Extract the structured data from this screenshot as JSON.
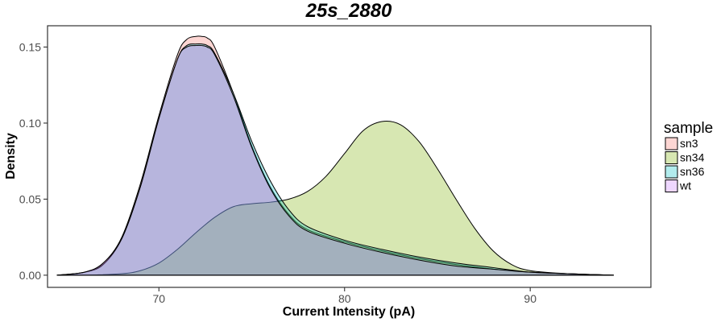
{
  "chart_data": {
    "type": "area",
    "title": "25s_2880",
    "xlabel": "Current Intensity (pA)",
    "ylabel": "Density",
    "xlim": [
      64,
      96.5
    ],
    "ylim": [
      -0.008,
      0.164
    ],
    "x_ticks": [
      {
        "value": 70,
        "label": "70"
      },
      {
        "value": 80,
        "label": "80"
      },
      {
        "value": 90,
        "label": "90"
      }
    ],
    "y_ticks": [
      {
        "value": 0.0,
        "label": "0.00"
      },
      {
        "value": 0.05,
        "label": "0.05"
      },
      {
        "value": 0.1,
        "label": "0.10"
      },
      {
        "value": 0.15,
        "label": "0.15"
      }
    ],
    "grid": false,
    "legend": {
      "title": "sample",
      "position": "right"
    },
    "series": [
      {
        "name": "sn3",
        "color": "#F8766D",
        "x": [
          64.5,
          66,
          67,
          68,
          69,
          70,
          71,
          71.5,
          72,
          72.3,
          72.6,
          73,
          74,
          75,
          76,
          77,
          78,
          80,
          82,
          84,
          86,
          88,
          90,
          92,
          94.5
        ],
        "y": [
          0.0,
          0.002,
          0.008,
          0.025,
          0.06,
          0.105,
          0.145,
          0.155,
          0.157,
          0.157,
          0.156,
          0.15,
          0.12,
          0.085,
          0.058,
          0.04,
          0.03,
          0.022,
          0.016,
          0.011,
          0.007,
          0.004,
          0.002,
          0.001,
          0.0
        ]
      },
      {
        "name": "sn34",
        "color": "#7CAE00",
        "x": [
          64.5,
          66,
          68,
          69,
          70,
          71,
          72,
          73,
          74,
          75,
          76,
          77,
          78,
          79,
          80,
          81,
          82,
          83,
          84,
          85,
          86,
          87,
          88,
          89,
          90,
          92,
          94.5
        ],
        "y": [
          0.0,
          0.0,
          0.001,
          0.003,
          0.008,
          0.017,
          0.028,
          0.038,
          0.045,
          0.047,
          0.048,
          0.05,
          0.055,
          0.065,
          0.08,
          0.095,
          0.101,
          0.099,
          0.088,
          0.07,
          0.05,
          0.031,
          0.016,
          0.007,
          0.003,
          0.001,
          0.0
        ]
      },
      {
        "name": "sn36",
        "color": "#00BFC4",
        "x": [
          64.5,
          66,
          67,
          68,
          69,
          70,
          71,
          71.5,
          72,
          72.3,
          72.6,
          73,
          74,
          75,
          76,
          77,
          78,
          80,
          82,
          84,
          86,
          88,
          90,
          92,
          94.5
        ],
        "y": [
          0.0,
          0.002,
          0.007,
          0.024,
          0.058,
          0.103,
          0.142,
          0.151,
          0.152,
          0.152,
          0.151,
          0.146,
          0.12,
          0.088,
          0.062,
          0.043,
          0.032,
          0.023,
          0.017,
          0.012,
          0.008,
          0.005,
          0.002,
          0.001,
          0.0
        ]
      },
      {
        "name": "wt",
        "color": "#C77CFF",
        "x": [
          64.5,
          66,
          67,
          68,
          69,
          70,
          71,
          71.5,
          72,
          72.3,
          72.6,
          73,
          74,
          75,
          76,
          77,
          78,
          80,
          82,
          84,
          86,
          88,
          90,
          92,
          94.5
        ],
        "y": [
          0.0,
          0.002,
          0.008,
          0.024,
          0.058,
          0.103,
          0.142,
          0.15,
          0.151,
          0.151,
          0.15,
          0.145,
          0.118,
          0.084,
          0.057,
          0.039,
          0.029,
          0.021,
          0.015,
          0.01,
          0.006,
          0.004,
          0.002,
          0.001,
          0.0
        ]
      }
    ]
  }
}
